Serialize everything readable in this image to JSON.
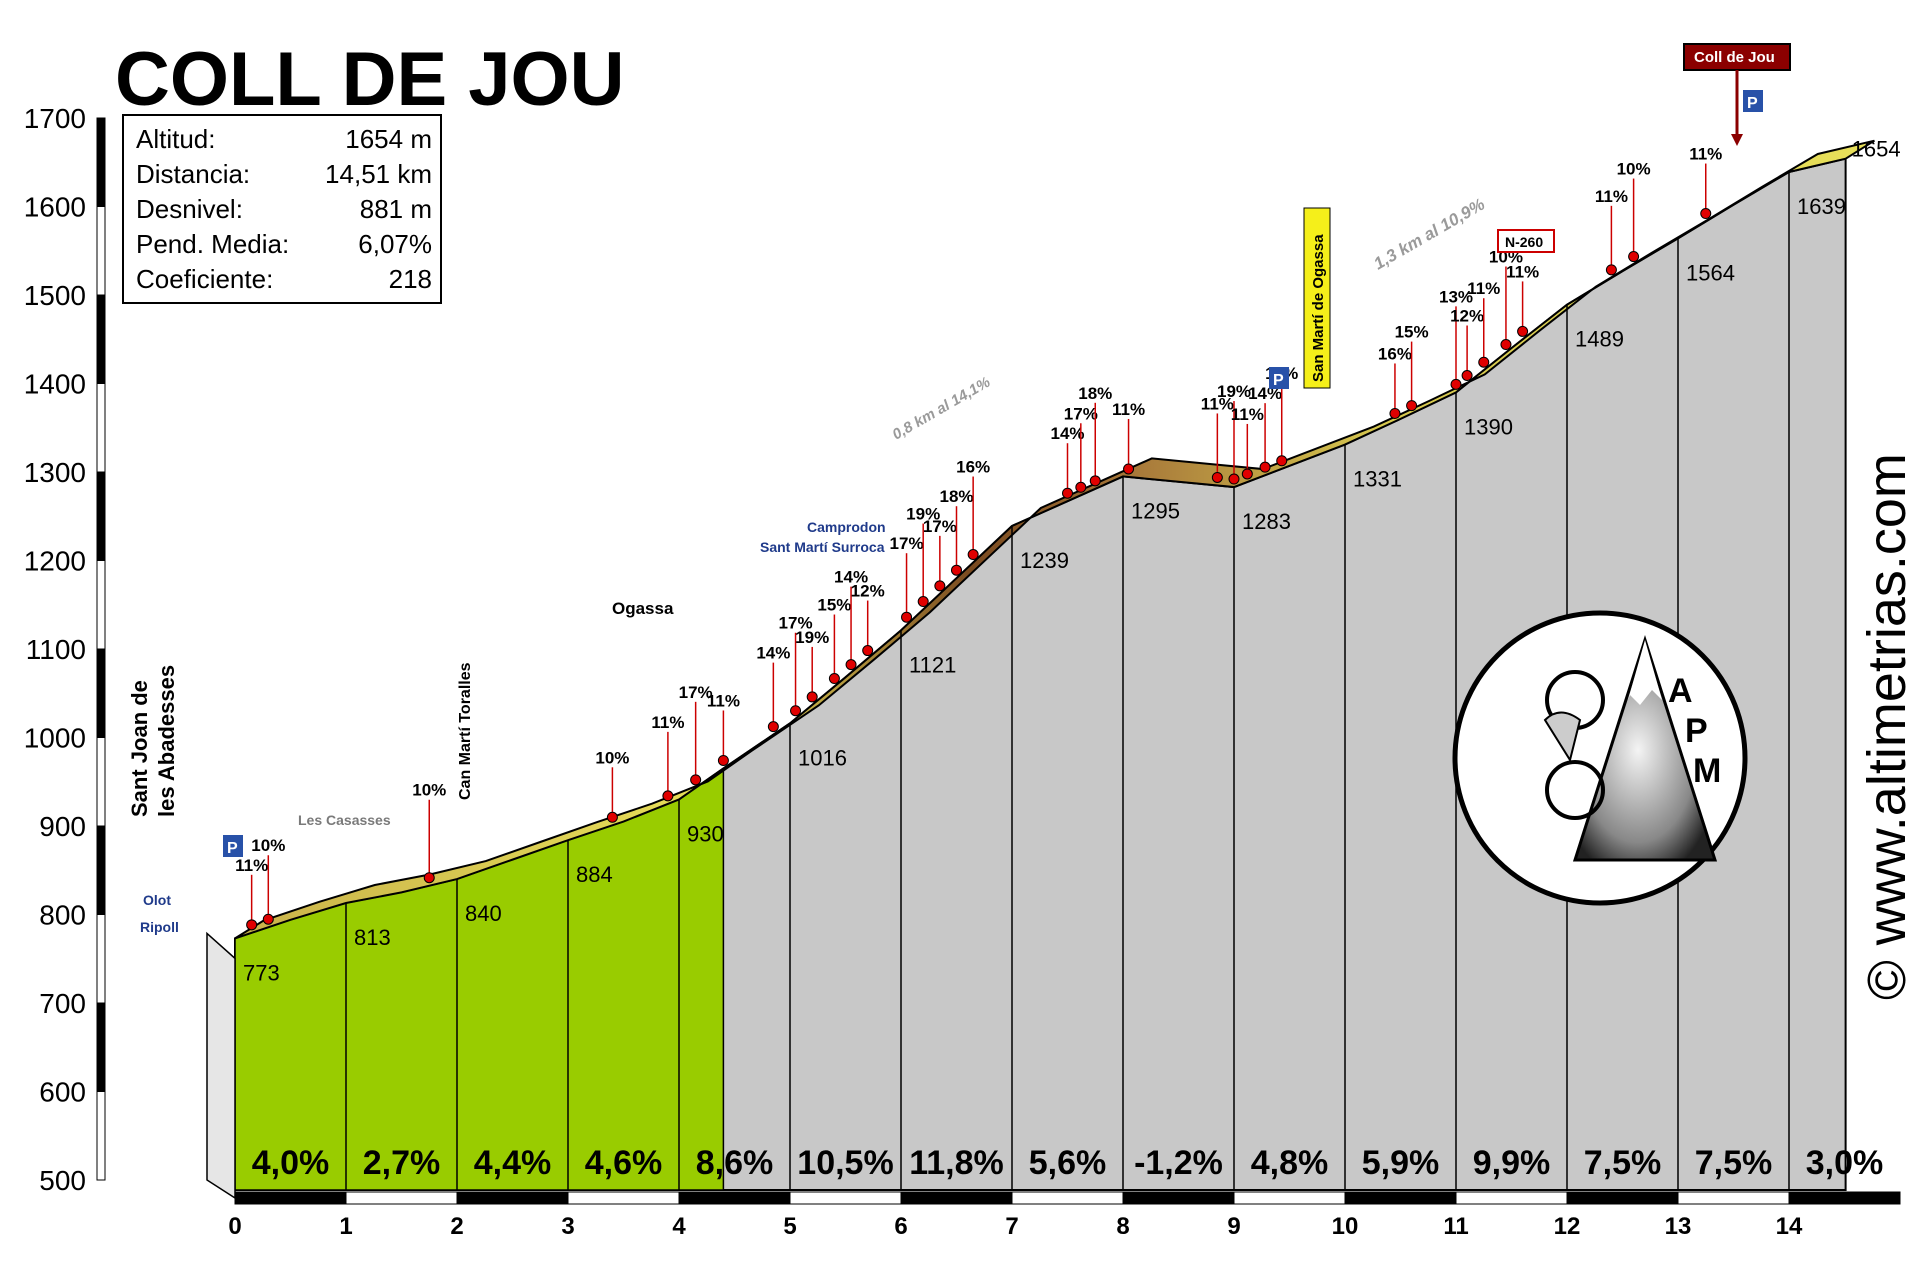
{
  "chart_data": {
    "type": "area",
    "title": "COLL DE JOU",
    "xlabel": "",
    "ylabel": "",
    "xlim": [
      0,
      14.51
    ],
    "ylim": [
      500,
      1700
    ],
    "y_ticks": [
      500,
      600,
      700,
      800,
      900,
      1000,
      1100,
      1200,
      1300,
      1400,
      1500,
      1600,
      1700
    ],
    "x_ticks": [
      0,
      1,
      2,
      3,
      4,
      5,
      6,
      7,
      8,
      9,
      10,
      11,
      12,
      13,
      14
    ],
    "profile": [
      {
        "x": 0,
        "y": 773
      },
      {
        "x": 0.5,
        "y": 794
      },
      {
        "x": 1,
        "y": 813
      },
      {
        "x": 1.5,
        "y": 825
      },
      {
        "x": 2,
        "y": 840
      },
      {
        "x": 2.5,
        "y": 862
      },
      {
        "x": 3,
        "y": 884
      },
      {
        "x": 3.5,
        "y": 905
      },
      {
        "x": 4,
        "y": 930
      },
      {
        "x": 4.4,
        "y": 965
      },
      {
        "x": 5,
        "y": 1016
      },
      {
        "x": 5.5,
        "y": 1068
      },
      {
        "x": 6,
        "y": 1121
      },
      {
        "x": 6.5,
        "y": 1180
      },
      {
        "x": 7,
        "y": 1239
      },
      {
        "x": 7.5,
        "y": 1267
      },
      {
        "x": 8,
        "y": 1295
      },
      {
        "x": 8.5,
        "y": 1289
      },
      {
        "x": 9,
        "y": 1283
      },
      {
        "x": 9.5,
        "y": 1307
      },
      {
        "x": 10,
        "y": 1331
      },
      {
        "x": 10.5,
        "y": 1360
      },
      {
        "x": 11,
        "y": 1390
      },
      {
        "x": 11.5,
        "y": 1440
      },
      {
        "x": 12,
        "y": 1489
      },
      {
        "x": 12.5,
        "y": 1527
      },
      {
        "x": 13,
        "y": 1564
      },
      {
        "x": 13.5,
        "y": 1602
      },
      {
        "x": 14,
        "y": 1639
      },
      {
        "x": 14.51,
        "y": 1654
      }
    ],
    "elevation_labels": [
      {
        "x": 0,
        "value": "773"
      },
      {
        "x": 1,
        "value": "813"
      },
      {
        "x": 2,
        "value": "840"
      },
      {
        "x": 3,
        "value": "884"
      },
      {
        "x": 4,
        "value": "930"
      },
      {
        "x": 5,
        "value": "1016"
      },
      {
        "x": 6,
        "value": "1121"
      },
      {
        "x": 7,
        "value": "1239"
      },
      {
        "x": 8,
        "value": "1295"
      },
      {
        "x": 9,
        "value": "1283"
      },
      {
        "x": 10,
        "value": "1331"
      },
      {
        "x": 11,
        "value": "1390"
      },
      {
        "x": 12,
        "value": "1489"
      },
      {
        "x": 13,
        "value": "1564"
      },
      {
        "x": 14,
        "value": "1639"
      },
      {
        "x": 14.51,
        "value": "1654"
      }
    ],
    "segment_gradients": [
      "4,0%",
      "2,7%",
      "4,4%",
      "4,6%",
      "8,6%",
      "10,5%",
      "11,8%",
      "5,6%",
      "-1,2%",
      "4,8%",
      "5,9%",
      "9,9%",
      "7,5%",
      "7,5%",
      "3,0%"
    ],
    "max_gradients": [
      {
        "x": 0.15,
        "value": "11%"
      },
      {
        "x": 0.3,
        "value": "10%"
      },
      {
        "x": 1.75,
        "value": "10%"
      },
      {
        "x": 3.4,
        "value": "10%"
      },
      {
        "x": 3.9,
        "value": "11%"
      },
      {
        "x": 4.15,
        "value": "17%"
      },
      {
        "x": 4.4,
        "value": "11%"
      },
      {
        "x": 4.85,
        "value": "14%"
      },
      {
        "x": 5.05,
        "value": "17%"
      },
      {
        "x": 5.2,
        "value": "19%"
      },
      {
        "x": 5.4,
        "value": "15%"
      },
      {
        "x": 5.55,
        "value": "14%"
      },
      {
        "x": 5.7,
        "value": "12%"
      },
      {
        "x": 6.05,
        "value": "17%"
      },
      {
        "x": 6.2,
        "value": "19%"
      },
      {
        "x": 6.35,
        "value": "17%"
      },
      {
        "x": 6.5,
        "value": "18%"
      },
      {
        "x": 6.65,
        "value": "16%"
      },
      {
        "x": 7.5,
        "value": "14%"
      },
      {
        "x": 7.62,
        "value": "17%"
      },
      {
        "x": 7.75,
        "value": "18%"
      },
      {
        "x": 8.05,
        "value": "11%"
      },
      {
        "x": 8.85,
        "value": "11%"
      },
      {
        "x": 9.0,
        "value": "19%"
      },
      {
        "x": 9.12,
        "value": "11%"
      },
      {
        "x": 9.28,
        "value": "14%"
      },
      {
        "x": 9.43,
        "value": "11%"
      },
      {
        "x": 10.45,
        "value": "16%"
      },
      {
        "x": 10.6,
        "value": "15%"
      },
      {
        "x": 11.0,
        "value": "13%"
      },
      {
        "x": 11.1,
        "value": "12%"
      },
      {
        "x": 11.25,
        "value": "11%"
      },
      {
        "x": 11.45,
        "value": "10%"
      },
      {
        "x": 11.6,
        "value": "11%"
      },
      {
        "x": 12.4,
        "value": "11%"
      },
      {
        "x": 12.6,
        "value": "10%"
      },
      {
        "x": 13.25,
        "value": "11%"
      }
    ],
    "stats": [
      {
        "label": "Altitud:",
        "value": "1654 m"
      },
      {
        "label": "Distancia:",
        "value": "14,51 km"
      },
      {
        "label": "Desnivel:",
        "value": "881 m"
      },
      {
        "label": "Pend. Media:",
        "value": "6,07%"
      },
      {
        "label": "Coeficiente:",
        "value": "218"
      }
    ],
    "places": {
      "start_line1": "Sant Joan de",
      "start_line2": "les Abadesses",
      "can_marti": "Can Martí Toralles",
      "les_casasses": "Les Casasses",
      "ogassa": "Ogassa",
      "camprodon": "Camprodon",
      "sant_marti_surroca": "Sant Martí Surroca",
      "sant_marti_ogassa": "San Martí de Ogassa",
      "coll_de_jou": "Coll de Jou",
      "olot": "Olot",
      "ripoll": "Ripoll",
      "n260": "N-260",
      "note1": "0,8 km al 14,1%",
      "note2": "1,3 km al 10,9%"
    },
    "watermark": "© www.altimetrias.com",
    "logo_text": "APM",
    "colors": {
      "green": "#99cc00",
      "grey": "#c8c8c8",
      "road_yellow": "#e8e05a",
      "road_brown": "#7a4a20",
      "red": "#cc0000"
    }
  }
}
